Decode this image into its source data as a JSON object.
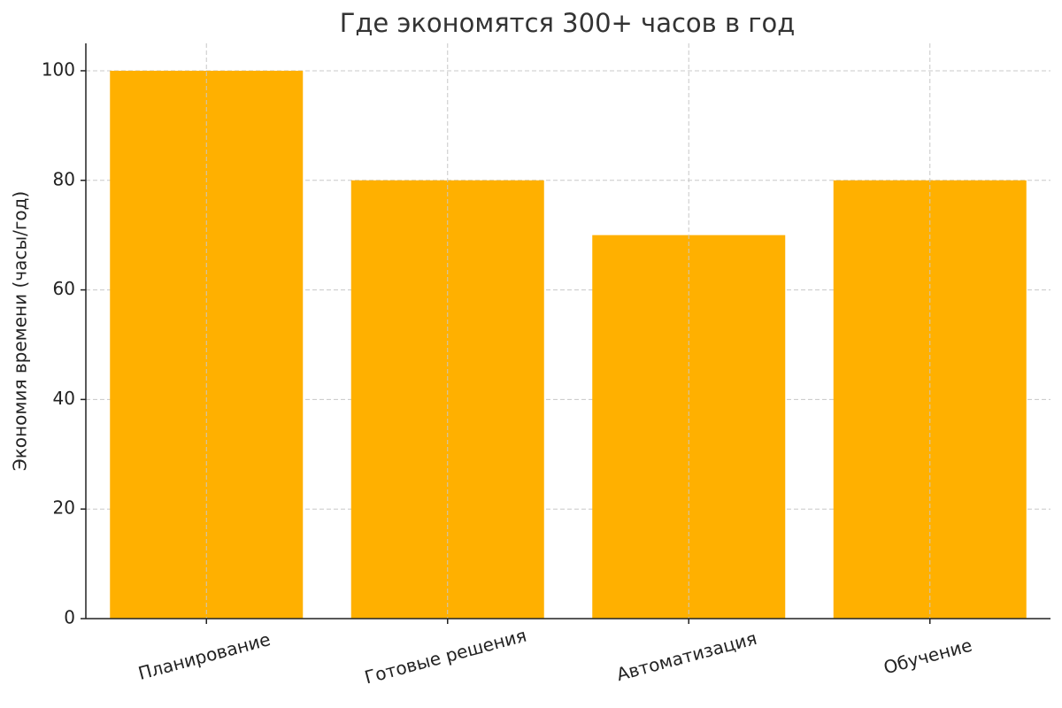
{
  "chart_data": {
    "type": "bar",
    "title": "Где экономятся 300+ часов в год",
    "y_label": "Экономия времени (часы/год)",
    "categories": [
      "Планирование",
      "Готовые решения",
      "Автоматизация",
      "Обучение"
    ],
    "values": [
      100,
      80,
      70,
      80
    ],
    "color": "#ffb000",
    "ylim": [
      0,
      105
    ],
    "yticks": [
      0,
      20,
      40,
      60,
      80,
      100
    ],
    "grid": true
  }
}
